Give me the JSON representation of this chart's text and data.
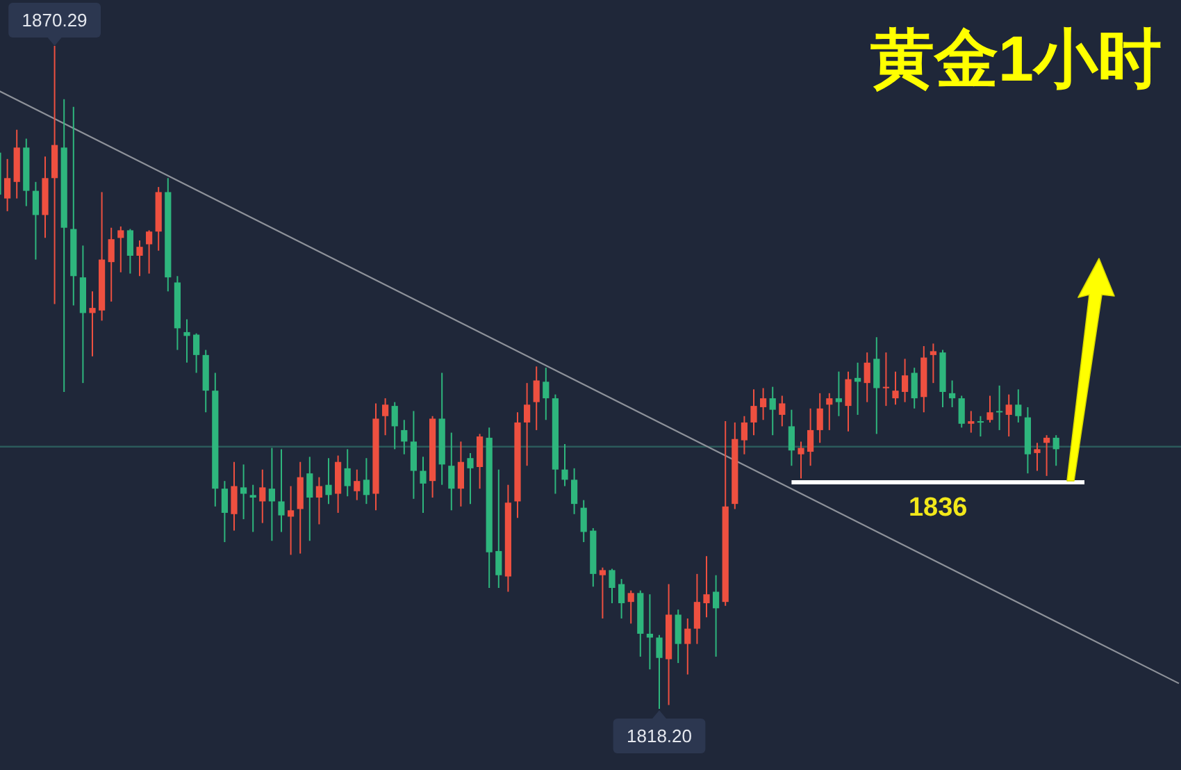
{
  "chart_data": {
    "type": "candlestick",
    "title": "黄金1小时",
    "categories": [
      null,
      null,
      null,
      null,
      null,
      null,
      null,
      null,
      null,
      null,
      null,
      null,
      null,
      null,
      null,
      null,
      null,
      null,
      null,
      null,
      null,
      null,
      null,
      null,
      null,
      null,
      null,
      null,
      null,
      null,
      null,
      null,
      null,
      null,
      null,
      null,
      null,
      null,
      null,
      null,
      null,
      null,
      null,
      null,
      null,
      null,
      null,
      null,
      null,
      null,
      null,
      null,
      null,
      null,
      null,
      null,
      null,
      null,
      null,
      null,
      null,
      null,
      null,
      null,
      null,
      null,
      null,
      null,
      null,
      null,
      null,
      null,
      null,
      null,
      null,
      null,
      null,
      null,
      null,
      null,
      null,
      null,
      null,
      null,
      null,
      null,
      null,
      null,
      null,
      null,
      null,
      null,
      null,
      null,
      null,
      null,
      null,
      null,
      null,
      null,
      null,
      null,
      null,
      null,
      null,
      null,
      null,
      null,
      null,
      null,
      null,
      null,
      null,
      null,
      null,
      null,
      null,
      null,
      null,
      null,
      null,
      null,
      null,
      null,
      null,
      null
    ],
    "ohlc": [
      [
        1861.9,
        1862.1,
        1858.4,
        1858.6
      ],
      [
        1858.3,
        1861.4,
        1857.3,
        1859.9
      ],
      [
        1859.6,
        1863.7,
        1858.3,
        1862.3
      ],
      [
        1862.3,
        1863.0,
        1857.7,
        1858.9
      ],
      [
        1858.9,
        1859.6,
        1853.5,
        1857.0
      ],
      [
        1857.0,
        1861.6,
        1855.2,
        1859.9
      ],
      [
        1859.9,
        1870.29,
        1850.0,
        1862.5
      ],
      [
        1862.3,
        1866.1,
        1843.1,
        1856.0
      ],
      [
        1855.9,
        1865.5,
        1849.9,
        1852.2
      ],
      [
        1852.1,
        1854.6,
        1843.8,
        1849.3
      ],
      [
        1849.3,
        1851.0,
        1845.9,
        1849.7
      ],
      [
        1849.5,
        1858.8,
        1848.7,
        1853.5
      ],
      [
        1853.3,
        1856.0,
        1850.2,
        1855.1
      ],
      [
        1855.2,
        1856.1,
        1852.5,
        1855.8
      ],
      [
        1855.8,
        1855.9,
        1852.4,
        1853.8
      ],
      [
        1853.8,
        1855.0,
        1852.2,
        1854.5
      ],
      [
        1854.7,
        1855.8,
        1852.4,
        1855.7
      ],
      [
        1855.7,
        1859.2,
        1854.2,
        1858.8
      ],
      [
        1858.8,
        1859.9,
        1851.0,
        1852.1
      ],
      [
        1851.7,
        1852.2,
        1846.4,
        1848.1
      ],
      [
        1847.8,
        1848.8,
        1845.4,
        1847.5
      ],
      [
        1847.6,
        1847.7,
        1844.6,
        1846.0
      ],
      [
        1846.0,
        1846.4,
        1841.5,
        1843.2
      ],
      [
        1843.2,
        1844.6,
        1834.1,
        1835.5
      ],
      [
        1835.5,
        1836.1,
        1831.3,
        1833.6
      ],
      [
        1833.5,
        1837.6,
        1832.2,
        1835.7
      ],
      [
        1835.6,
        1837.4,
        1833.1,
        1835.1
      ],
      [
        1835.0,
        1835.8,
        1832.1,
        1834.8
      ],
      [
        1834.5,
        1837.0,
        1832.8,
        1835.6
      ],
      [
        1835.5,
        1838.7,
        1831.4,
        1834.5
      ],
      [
        1834.5,
        1838.6,
        1832.1,
        1833.4
      ],
      [
        1833.3,
        1835.7,
        1830.3,
        1833.8
      ],
      [
        1833.9,
        1837.6,
        1830.4,
        1836.4
      ],
      [
        1836.7,
        1838.0,
        1831.4,
        1834.8
      ],
      [
        1834.8,
        1836.4,
        1832.7,
        1835.7
      ],
      [
        1835.8,
        1837.9,
        1834.3,
        1835.0
      ],
      [
        1835.1,
        1838.1,
        1833.6,
        1837.6
      ],
      [
        1837.1,
        1838.6,
        1834.9,
        1835.7
      ],
      [
        1835.3,
        1837.0,
        1834.6,
        1836.1
      ],
      [
        1836.2,
        1837.9,
        1834.3,
        1835.0
      ],
      [
        1835.1,
        1842.2,
        1833.8,
        1841.0
      ],
      [
        1841.2,
        1842.6,
        1839.7,
        1842.1
      ],
      [
        1842.0,
        1842.3,
        1838.6,
        1840.4
      ],
      [
        1840.1,
        1840.9,
        1838.2,
        1839.2
      ],
      [
        1839.2,
        1841.6,
        1834.7,
        1836.9
      ],
      [
        1836.9,
        1838.0,
        1833.6,
        1835.9
      ],
      [
        1836.1,
        1841.2,
        1834.8,
        1841.0
      ],
      [
        1841.0,
        1844.6,
        1835.8,
        1837.4
      ],
      [
        1837.3,
        1839.9,
        1833.8,
        1835.5
      ],
      [
        1835.5,
        1839.2,
        1834.1,
        1837.6
      ],
      [
        1837.9,
        1838.3,
        1834.3,
        1837.1
      ],
      [
        1837.2,
        1839.8,
        1835.5,
        1839.6
      ],
      [
        1839.5,
        1840.3,
        1827.7,
        1830.5
      ],
      [
        1830.6,
        1837.0,
        1827.7,
        1828.7
      ],
      [
        1828.6,
        1835.8,
        1827.4,
        1834.4
      ],
      [
        1834.5,
        1841.5,
        1833.2,
        1840.7
      ],
      [
        1840.7,
        1843.8,
        1837.3,
        1842.1
      ],
      [
        1842.3,
        1845.1,
        1840.1,
        1844.0
      ],
      [
        1843.9,
        1845.0,
        1840.9,
        1842.6
      ],
      [
        1842.6,
        1842.9,
        1835.1,
        1837.0
      ],
      [
        1837.0,
        1839.0,
        1835.7,
        1836.2
      ],
      [
        1836.2,
        1837.1,
        1833.5,
        1834.3
      ],
      [
        1834.0,
        1834.6,
        1831.3,
        1832.1
      ],
      [
        1832.2,
        1832.4,
        1827.8,
        1828.8
      ],
      [
        1828.7,
        1829.3,
        1825.3,
        1829.1
      ],
      [
        1829.1,
        1829.2,
        1826.5,
        1827.7
      ],
      [
        1828.0,
        1828.4,
        1825.3,
        1826.5
      ],
      [
        1826.6,
        1827.5,
        1824.9,
        1827.3
      ],
      [
        1827.3,
        1827.5,
        1822.3,
        1824.1
      ],
      [
        1824.1,
        1827.2,
        1821.3,
        1823.8
      ],
      [
        1823.8,
        1824.0,
        1818.2,
        1822.2
      ],
      [
        1822.1,
        1828.0,
        1818.5,
        1825.6
      ],
      [
        1825.6,
        1826.0,
        1821.8,
        1823.3
      ],
      [
        1823.3,
        1825.3,
        1820.9,
        1824.5
      ],
      [
        1824.5,
        1828.8,
        1823.3,
        1826.6
      ],
      [
        1826.5,
        1830.2,
        1825.4,
        1827.2
      ],
      [
        1827.4,
        1828.7,
        1822.3,
        1826.1
      ],
      [
        1826.6,
        1840.8,
        1826.3,
        1834.1
      ],
      [
        1834.3,
        1840.7,
        1833.9,
        1839.4
      ],
      [
        1839.3,
        1841.2,
        1838.2,
        1840.7
      ],
      [
        1840.7,
        1843.3,
        1839.7,
        1842.0
      ],
      [
        1841.9,
        1843.4,
        1840.9,
        1842.6
      ],
      [
        1842.6,
        1843.5,
        1839.7,
        1841.7
      ],
      [
        1841.3,
        1842.8,
        1840.4,
        1842.2
      ],
      [
        1840.4,
        1841.7,
        1837.3,
        1838.5
      ],
      [
        1838.2,
        1839.2,
        1836.3,
        1838.7
      ],
      [
        1838.4,
        1841.8,
        1837.3,
        1840.1
      ],
      [
        1840.1,
        1843.0,
        1839.1,
        1841.8
      ],
      [
        1842.1,
        1843.0,
        1840.1,
        1842.6
      ],
      [
        1842.6,
        1844.7,
        1841.2,
        1842.3
      ],
      [
        1842.0,
        1844.7,
        1840.0,
        1844.1
      ],
      [
        1844.2,
        1845.4,
        1841.3,
        1843.9
      ],
      [
        1843.8,
        1846.2,
        1842.3,
        1845.4
      ],
      [
        1845.7,
        1847.4,
        1839.8,
        1843.4
      ],
      [
        1843.4,
        1846.2,
        1842.0,
        1843.5
      ],
      [
        1842.6,
        1844.7,
        1842.1,
        1843.2
      ],
      [
        1843.1,
        1845.7,
        1842.3,
        1844.4
      ],
      [
        1844.6,
        1845.0,
        1841.8,
        1842.6
      ],
      [
        1842.7,
        1846.7,
        1841.5,
        1845.8
      ],
      [
        1846.0,
        1846.9,
        1843.8,
        1846.3
      ],
      [
        1846.2,
        1846.4,
        1841.9,
        1843.1
      ],
      [
        1843.0,
        1844.0,
        1841.9,
        1842.6
      ],
      [
        1842.6,
        1842.8,
        1840.3,
        1840.6
      ],
      [
        1840.6,
        1841.6,
        1839.9,
        1840.8
      ],
      [
        1840.8,
        1841.2,
        1839.6,
        1840.7
      ],
      [
        1840.9,
        1842.8,
        1840.7,
        1841.5
      ],
      [
        1841.6,
        1843.6,
        1840.1,
        1841.5
      ],
      [
        1841.3,
        1842.9,
        1839.6,
        1842.1
      ],
      [
        1842.1,
        1843.3,
        1840.7,
        1841.2
      ],
      [
        1841.1,
        1841.9,
        1836.7,
        1838.2
      ],
      [
        1838.3,
        1839.1,
        1836.9,
        1838.6
      ],
      [
        1839.1,
        1839.7,
        1836.5,
        1839.5
      ],
      [
        1839.5,
        1839.7,
        1837.3,
        1838.6
      ],
      null,
      null,
      null,
      null,
      null,
      null,
      null,
      null,
      null,
      null,
      null,
      null,
      null
    ],
    "colors": [
      "#2eb67d",
      "#ee5040",
      "#ee5040",
      "#2eb67d",
      "#2eb67d",
      "#ee5040",
      "#ee5040",
      "#2eb67d",
      "#2eb67d",
      "#2eb67d",
      "#ee5040",
      "#ee5040",
      "#ee5040",
      "#ee5040",
      "#2eb67d",
      "#ee5040",
      "#ee5040",
      "#ee5040",
      "#2eb67d",
      "#2eb67d",
      "#2eb67d",
      "#2eb67d",
      "#2eb67d",
      "#2eb67d",
      "#2eb67d",
      "#ee5040",
      "#2eb67d",
      "#2eb67d",
      "#ee5040",
      "#2eb67d",
      "#2eb67d",
      "#ee5040",
      "#ee5040",
      "#2eb67d",
      "#ee5040",
      "#2eb67d",
      "#ee5040",
      "#2eb67d",
      "#ee5040",
      "#2eb67d",
      "#ee5040",
      "#ee5040",
      "#2eb67d",
      "#2eb67d",
      "#2eb67d",
      "#2eb67d",
      "#ee5040",
      "#2eb67d",
      "#2eb67d",
      "#ee5040",
      "#2eb67d",
      "#ee5040",
      "#2eb67d",
      "#2eb67d",
      "#ee5040",
      "#ee5040",
      "#ee5040",
      "#ee5040",
      "#2eb67d",
      "#2eb67d",
      "#2eb67d",
      "#2eb67d",
      "#2eb67d",
      "#2eb67d",
      "#ee5040",
      "#2eb67d",
      "#2eb67d",
      "#ee5040",
      "#2eb67d",
      "#2eb67d",
      "#2eb67d",
      "#ee5040",
      "#2eb67d",
      "#ee5040",
      "#ee5040",
      "#ee5040",
      "#2eb67d",
      "#ee5040",
      "#ee5040",
      "#ee5040",
      "#ee5040",
      "#ee5040",
      "#2eb67d",
      "#ee5040",
      "#2eb67d",
      "#ee5040",
      "#ee5040",
      "#ee5040",
      "#ee5040",
      "#2eb67d",
      "#ee5040",
      "#2eb67d",
      "#ee5040",
      "#2eb67d",
      "#ee5040",
      "#ee5040",
      "#ee5040",
      "#2eb67d",
      "#ee5040",
      "#ee5040",
      "#2eb67d",
      "#2eb67d",
      "#2eb67d",
      "#ee5040",
      "#2eb67d",
      "#ee5040",
      "#2eb67d",
      "#ee5040",
      "#2eb67d",
      "#2eb67d",
      "#ee5040",
      "#ee5040",
      "#2eb67d",
      null,
      null,
      null,
      null,
      null,
      null,
      null,
      null,
      null,
      null,
      null,
      null,
      null
    ],
    "series": [
      {
        "type": "line",
        "color": "#8e929a",
        "values": [
          1866.8,
          null,
          null,
          null,
          null,
          null,
          null,
          null,
          null,
          null,
          null,
          null,
          null,
          null,
          null,
          null,
          null,
          null,
          null,
          null,
          null,
          null,
          null,
          null,
          null,
          null,
          null,
          null,
          null,
          null,
          null,
          null,
          null,
          null,
          null,
          null,
          null,
          null,
          null,
          null,
          null,
          null,
          null,
          null,
          null,
          null,
          null,
          null,
          null,
          null,
          null,
          null,
          null,
          null,
          null,
          null,
          null,
          null,
          null,
          null,
          null,
          null,
          null,
          null,
          null,
          null,
          null,
          null,
          null,
          null,
          null,
          null,
          null,
          null,
          null,
          null,
          null,
          null,
          null,
          null,
          null,
          null,
          null,
          null,
          null,
          null,
          null,
          null,
          null,
          null,
          null,
          null,
          null,
          null,
          null,
          null,
          null,
          null,
          null,
          null,
          null,
          null,
          null,
          null,
          null,
          null,
          null,
          null,
          null,
          null,
          null,
          null,
          null,
          null,
          null,
          null,
          null,
          null,
          null,
          null,
          null,
          null,
          null,
          null,
          null,
          1820.2
        ]
      },
      {
        "type": "line",
        "color": "#ffffff",
        "values": [
          null,
          null,
          null,
          null,
          null,
          null,
          null,
          null,
          null,
          null,
          null,
          null,
          null,
          null,
          null,
          null,
          null,
          null,
          null,
          null,
          null,
          null,
          null,
          null,
          null,
          null,
          null,
          null,
          null,
          null,
          null,
          null,
          null,
          null,
          null,
          null,
          null,
          null,
          null,
          null,
          null,
          null,
          null,
          null,
          null,
          null,
          null,
          null,
          null,
          null,
          null,
          null,
          null,
          null,
          null,
          null,
          null,
          null,
          null,
          null,
          null,
          null,
          null,
          null,
          null,
          null,
          null,
          null,
          null,
          null,
          null,
          null,
          null,
          null,
          null,
          null,
          null,
          null,
          null,
          null,
          null,
          null,
          null,
          null,
          1836,
          null,
          null,
          null,
          null,
          null,
          null,
          null,
          null,
          null,
          null,
          null,
          null,
          null,
          null,
          null,
          null,
          null,
          null,
          null,
          null,
          null,
          null,
          null,
          null,
          null,
          null,
          null,
          null,
          null,
          null,
          1836,
          null,
          null,
          null,
          null,
          null,
          null,
          null,
          null,
          null,
          null
        ]
      }
    ],
    "ref_lines": [
      {
        "axis": "y",
        "value": 1838.8,
        "color": "#2b5a5b"
      }
    ],
    "annotations": [
      {
        "text": "1870.29",
        "y": 1870.29
      },
      {
        "text": "1818.20",
        "y": 1818.2
      },
      {
        "text": "1836",
        "y": 1836
      }
    ]
  }
}
